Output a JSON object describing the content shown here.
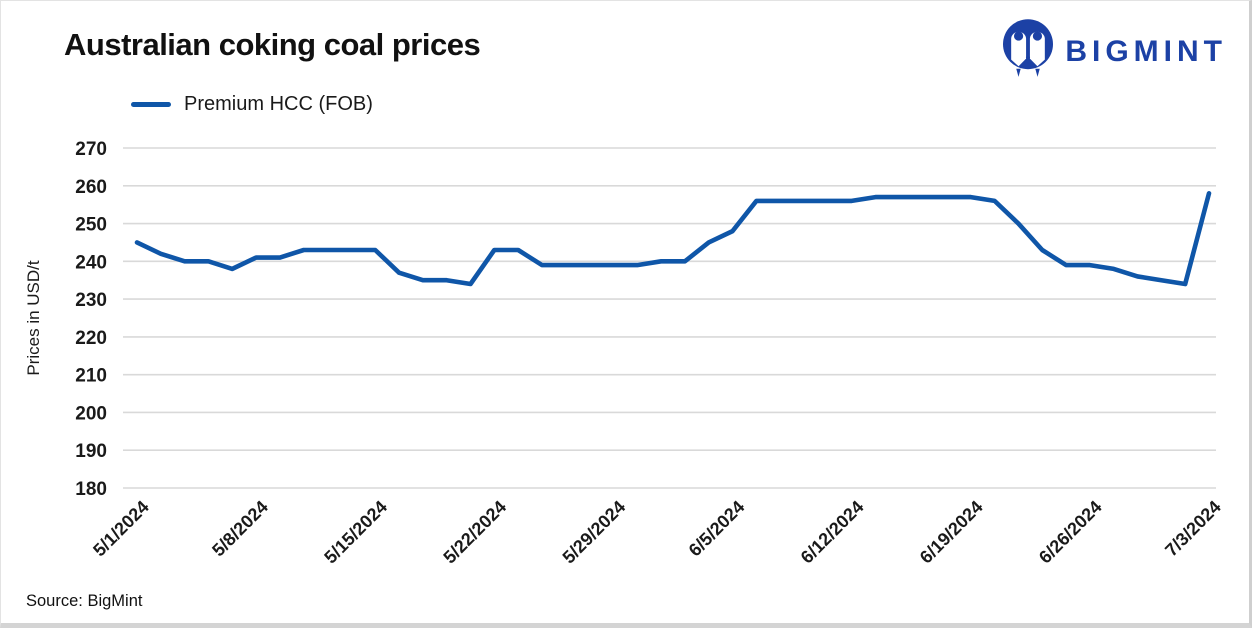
{
  "header": {
    "title": "Australian coking coal prices",
    "brand": "BIGMINT"
  },
  "legend": {
    "label": "Premium HCC (FOB)"
  },
  "footer": {
    "source": "Source: BigMint"
  },
  "colors": {
    "line": "#0F56A8",
    "logo_blue": "#1C41A5",
    "gridline": "#D9D9D9",
    "text": "#1A1A1A"
  },
  "chart_data": {
    "type": "line",
    "title": "Australian coking coal prices",
    "series_name": "Premium HCC (FOB)",
    "xlabel": "",
    "ylabel": "Prices in USD/t",
    "ylim": [
      180,
      270
    ],
    "y_tick_step": 10,
    "grid": "horizontal",
    "legend_position": "top-left",
    "x_tick_labels": [
      "5/1/2024",
      "5/8/2024",
      "5/15/2024",
      "5/22/2024",
      "5/29/2024",
      "6/5/2024",
      "6/12/2024",
      "6/19/2024",
      "6/26/2024",
      "7/3/2024"
    ],
    "x_tick_indices": [
      0,
      5,
      10,
      15,
      20,
      25,
      30,
      35,
      40,
      45
    ],
    "points": [
      [
        "5/1/2024",
        245
      ],
      [
        "5/2/2024",
        242
      ],
      [
        "5/3/2024",
        240
      ],
      [
        "5/6/2024",
        240
      ],
      [
        "5/7/2024",
        238
      ],
      [
        "5/8/2024",
        241
      ],
      [
        "5/9/2024",
        241
      ],
      [
        "5/10/2024",
        243
      ],
      [
        "5/13/2024",
        243
      ],
      [
        "5/14/2024",
        243
      ],
      [
        "5/15/2024",
        243
      ],
      [
        "5/16/2024",
        237
      ],
      [
        "5/17/2024",
        235
      ],
      [
        "5/20/2024",
        235
      ],
      [
        "5/21/2024",
        234
      ],
      [
        "5/22/2024",
        243
      ],
      [
        "5/23/2024",
        243
      ],
      [
        "5/24/2024",
        239
      ],
      [
        "5/27/2024",
        239
      ],
      [
        "5/28/2024",
        239
      ],
      [
        "5/29/2024",
        239
      ],
      [
        "5/30/2024",
        239
      ],
      [
        "5/31/2024",
        240
      ],
      [
        "6/3/2024",
        240
      ],
      [
        "6/4/2024",
        245
      ],
      [
        "6/5/2024",
        248
      ],
      [
        "6/6/2024",
        256
      ],
      [
        "6/7/2024",
        256
      ],
      [
        "6/10/2024",
        256
      ],
      [
        "6/11/2024",
        256
      ],
      [
        "6/12/2024",
        256
      ],
      [
        "6/13/2024",
        257
      ],
      [
        "6/14/2024",
        257
      ],
      [
        "6/17/2024",
        257
      ],
      [
        "6/18/2024",
        257
      ],
      [
        "6/19/2024",
        257
      ],
      [
        "6/20/2024",
        256
      ],
      [
        "6/21/2024",
        250
      ],
      [
        "6/24/2024",
        243
      ],
      [
        "6/25/2024",
        239
      ],
      [
        "6/26/2024",
        239
      ],
      [
        "6/27/2024",
        238
      ],
      [
        "6/28/2024",
        236
      ],
      [
        "7/1/2024",
        235
      ],
      [
        "7/2/2024",
        234
      ],
      [
        "7/3/2024",
        258
      ]
    ]
  }
}
